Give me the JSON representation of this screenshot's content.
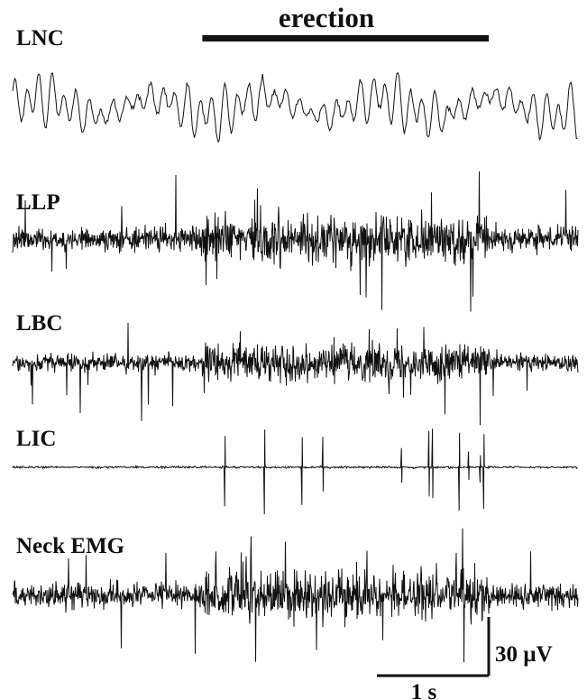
{
  "chart_data": {
    "type": "line",
    "title": "",
    "event_marker": {
      "label": "erection",
      "start_s": 2.55,
      "end_s": 6.4
    },
    "x_range_s": [
      0,
      7.6
    ],
    "traces": [
      {
        "name": "LNC",
        "style": "slow-wave",
        "amplitude_uV": 25
      },
      {
        "name": "LLP",
        "style": "dense-spikes",
        "amplitude_uV": 40
      },
      {
        "name": "LBC",
        "style": "dense-spikes",
        "amplitude_uV": 30
      },
      {
        "name": "LIC",
        "style": "bursting-units",
        "amplitude_uV": 35
      },
      {
        "name": "Neck EMG",
        "style": "dense-spikes",
        "amplitude_uV": 40
      }
    ],
    "scale_bar": {
      "time_label": "1 s",
      "time_s": 1,
      "amplitude_label": "30 µV",
      "amplitude_uV": 30
    },
    "grid": false,
    "legend": "none"
  }
}
